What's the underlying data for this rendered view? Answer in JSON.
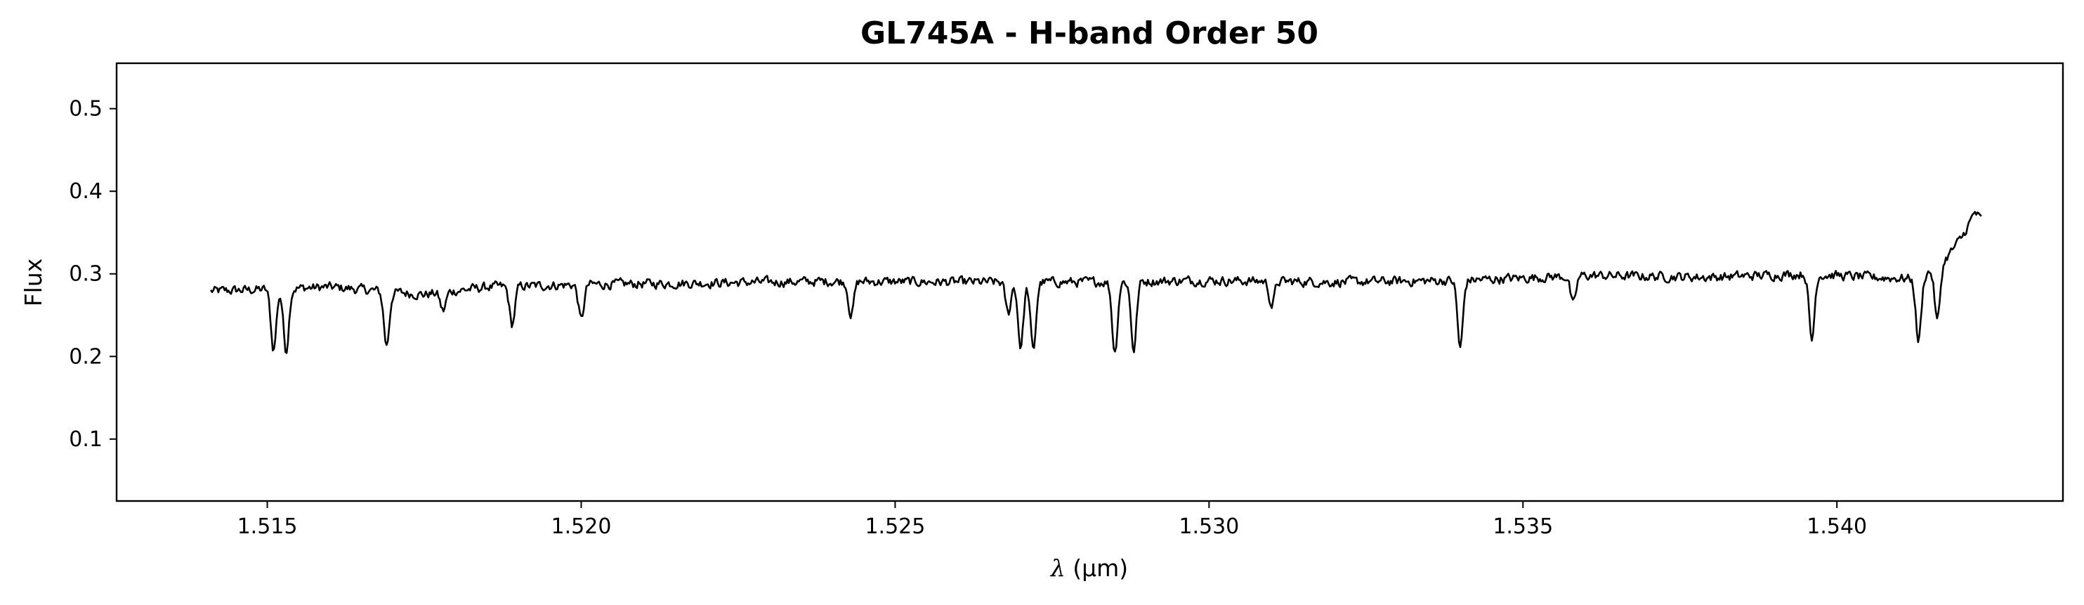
{
  "chart_data": {
    "type": "line",
    "title": "GL745A - H-band Order 50",
    "xlabel": "λ (μm)",
    "xlabel_parts": {
      "symbol": "λ",
      "unit": "(μm)"
    },
    "ylabel": "Flux",
    "xlim": [
      1.5126,
      1.5436
    ],
    "ylim": [
      0.025,
      0.555
    ],
    "xticks": [
      1.515,
      1.52,
      1.525,
      1.53,
      1.535,
      1.54
    ],
    "xtick_labels": [
      "1.515",
      "1.520",
      "1.525",
      "1.530",
      "1.535",
      "1.540"
    ],
    "yticks": [
      0.1,
      0.2,
      0.3,
      0.4,
      0.5
    ],
    "ytick_labels": [
      "0.1",
      "0.2",
      "0.3",
      "0.4",
      "0.5"
    ],
    "grid": false,
    "line_color": "#000000",
    "series": [
      {
        "x_start": 1.5141,
        "x_end": 1.5423,
        "continuum": 0.285,
        "noise": 0.009,
        "continuum_knots": [
          [
            1.5141,
            0.279
          ],
          [
            1.516,
            0.284
          ],
          [
            1.5175,
            0.275
          ],
          [
            1.5185,
            0.284
          ],
          [
            1.52,
            0.287
          ],
          [
            1.522,
            0.289
          ],
          [
            1.524,
            0.291
          ],
          [
            1.526,
            0.29
          ],
          [
            1.528,
            0.29
          ],
          [
            1.53,
            0.292
          ],
          [
            1.532,
            0.29
          ],
          [
            1.534,
            0.292
          ],
          [
            1.536,
            0.298
          ],
          [
            1.538,
            0.296
          ],
          [
            1.5395,
            0.3
          ],
          [
            1.5405,
            0.296
          ],
          [
            1.5413,
            0.294
          ],
          [
            1.5417,
            0.315
          ],
          [
            1.542,
            0.345
          ],
          [
            1.5422,
            0.375
          ],
          [
            1.5423,
            0.365
          ]
        ],
        "absorption_lines": [
          [
            1.5151,
            0.208
          ],
          [
            1.5153,
            0.207
          ],
          [
            1.5169,
            0.213
          ],
          [
            1.5178,
            0.255
          ],
          [
            1.5189,
            0.238
          ],
          [
            1.52,
            0.244
          ],
          [
            1.5243,
            0.25
          ],
          [
            1.5268,
            0.252
          ],
          [
            1.527,
            0.212
          ],
          [
            1.5272,
            0.206
          ],
          [
            1.5285,
            0.205
          ],
          [
            1.5288,
            0.208
          ],
          [
            1.531,
            0.262
          ],
          [
            1.534,
            0.21
          ],
          [
            1.5358,
            0.262
          ],
          [
            1.5396,
            0.219
          ],
          [
            1.5413,
            0.218
          ],
          [
            1.5416,
            0.243
          ]
        ]
      }
    ]
  }
}
